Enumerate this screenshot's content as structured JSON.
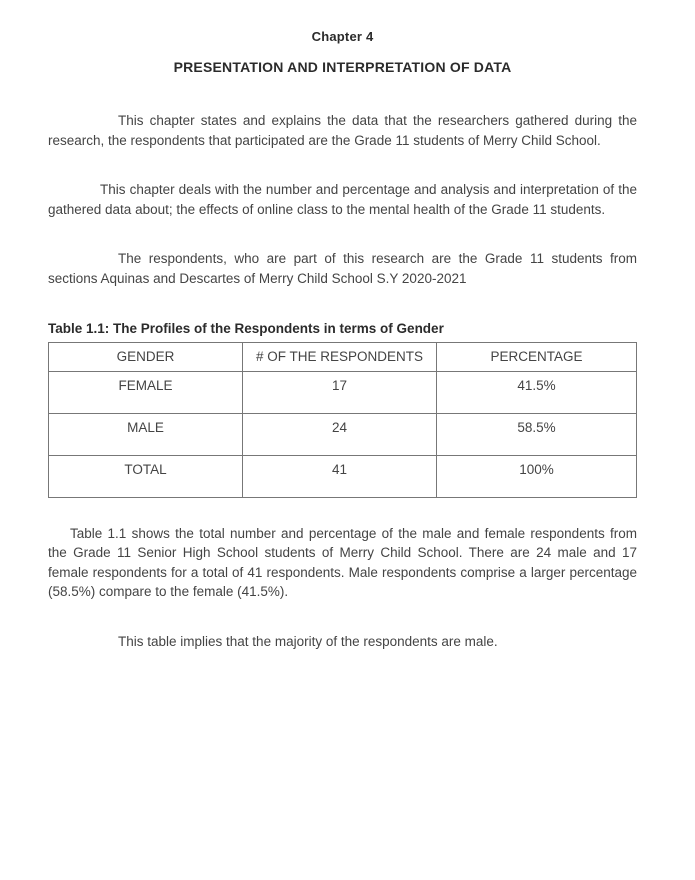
{
  "chapter": {
    "label": "Chapter 4",
    "title": "PRESENTATION AND INTERPRETATION OF DATA"
  },
  "paragraphs": {
    "p1": "This chapter states and explains the data that the researchers gathered during the research, the respondents that participated are the Grade 11 students of Merry Child School.",
    "p2": "This chapter deals with the number and percentage and analysis and interpretation of the gathered data about; the effects of online class to the mental health of the Grade 11 students.",
    "p3": "The respondents, who are part of this research are the Grade 11 students from sections Aquinas and Descartes of Merry Child School S.Y 2020-2021",
    "table_desc": "Table 1.1 shows the total number and percentage of the male and female respondents from the Grade 11 Senior High School students of Merry Child School. There are 24 male and 17 female respondents for a total of 41 respondents. Male respondents comprise a larger percentage (58.5%) compare to the female (41.5%).",
    "conclusion": "This table implies that the majority of the respondents are male."
  },
  "table": {
    "caption": "Table 1.1: The Profiles of the Respondents in terms of Gender",
    "columns": [
      "GENDER",
      "# OF THE RESPONDENTS",
      "PERCENTAGE"
    ],
    "rows": [
      [
        "FEMALE",
        "17",
        "41.5%"
      ],
      [
        "MALE",
        "24",
        "58.5%"
      ],
      [
        "TOTAL",
        "41",
        "100%"
      ]
    ],
    "border_color": "#777777",
    "text_color": "#444444",
    "background_color": "#ffffff",
    "header_fontsize": 13.5,
    "cell_fontsize": 13.5,
    "col_widths_pct": [
      33,
      33,
      34
    ]
  },
  "styles": {
    "body_font": "Verdana",
    "body_fontsize": 13.5,
    "body_color": "#444444",
    "heading_color": "#2b2b2b",
    "background": "#ffffff"
  }
}
